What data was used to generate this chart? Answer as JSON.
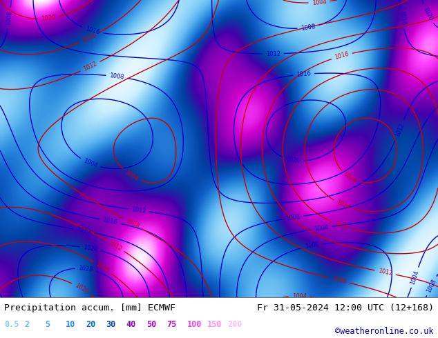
{
  "title_left": "Precipitation accum. [mm] ECMWF",
  "title_right": "Fr 31-05-2024 12:00 UTC (12+168)",
  "credit": "©weatheronline.co.uk",
  "legend_values": [
    0.5,
    2,
    5,
    10,
    20,
    30,
    40,
    50,
    75,
    100,
    150,
    200
  ],
  "legend_colors": [
    "#b3f0ff",
    "#7fd4f5",
    "#4db8f0",
    "#1e90e8",
    "#0066cc",
    "#0040b0",
    "#6600cc",
    "#9900cc",
    "#cc00cc",
    "#ff00ff",
    "#ff66ff",
    "#ffffff"
  ],
  "bg_color": "#dff5e8",
  "map_bg": "#aee0f5",
  "bottom_bar_color": "#ffffff",
  "label_color_left": "#000000",
  "label_color_right": "#000000",
  "credit_color": "#0000cc",
  "fig_width": 6.34,
  "fig_height": 4.9,
  "dpi": 100
}
